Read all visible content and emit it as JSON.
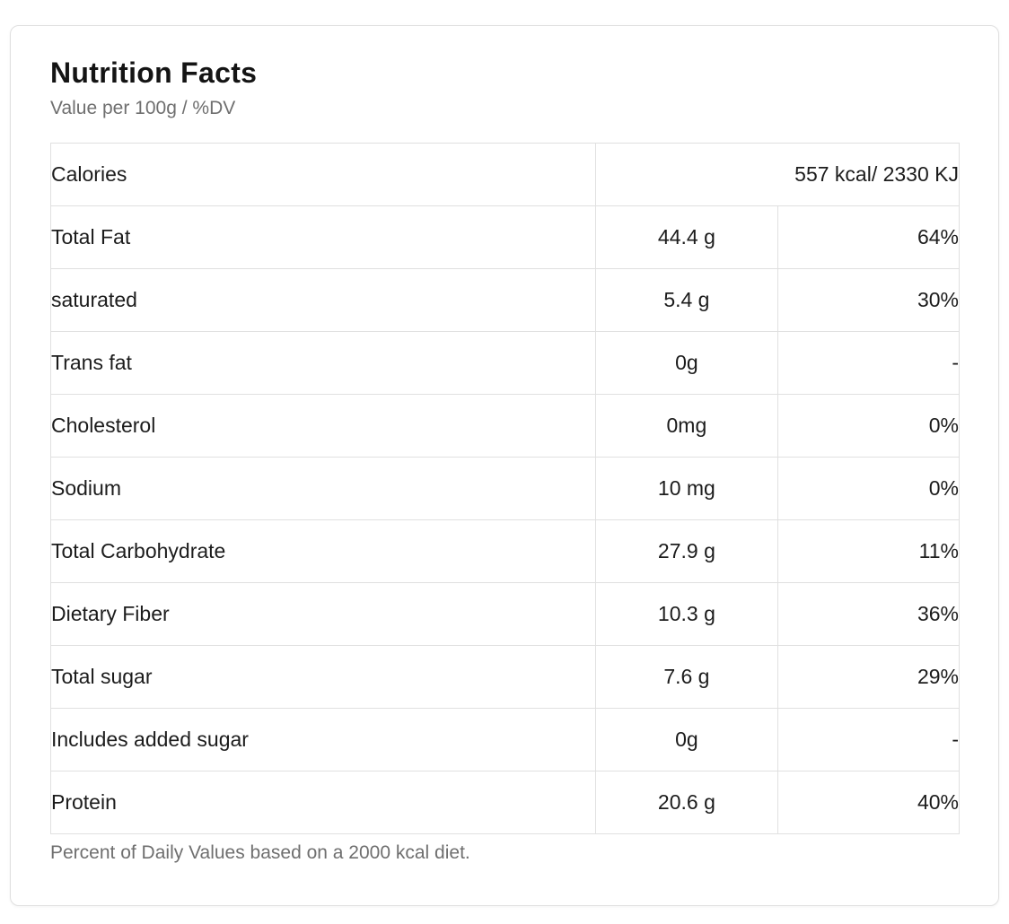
{
  "card": {
    "title": "Nutrition Facts",
    "subtitle": "Value per 100g / %DV",
    "footnote": "Percent of Daily Values based on a 2000 kcal diet."
  },
  "table": {
    "calories_row": {
      "label": "Calories",
      "value": "557 kcal/ 2330 KJ"
    },
    "rows": [
      {
        "label": "Total Fat",
        "amount": "44.4 g",
        "dv": "64%"
      },
      {
        "label": "saturated",
        "amount": "5.4 g",
        "dv": "30%"
      },
      {
        "label": "Trans fat",
        "amount": "0g",
        "dv": "-"
      },
      {
        "label": "Cholesterol",
        "amount": "0mg",
        "dv": "0%"
      },
      {
        "label": "Sodium",
        "amount": "10 mg",
        "dv": "0%"
      },
      {
        "label": "Total Carbohydrate",
        "amount": "27.9 g",
        "dv": "11%"
      },
      {
        "label": "Dietary Fiber",
        "amount": "10.3 g",
        "dv": "36%"
      },
      {
        "label": "Total sugar",
        "amount": "7.6 g",
        "dv": "29%"
      },
      {
        "label": "Includes added sugar",
        "amount": "0g",
        "dv": "-"
      },
      {
        "label": "Protein",
        "amount": "20.6 g",
        "dv": "40%"
      }
    ]
  },
  "colors": {
    "border": "#e0e0e0",
    "text": "#1c1c1c",
    "muted": "#6f6f6f",
    "background": "#ffffff"
  }
}
